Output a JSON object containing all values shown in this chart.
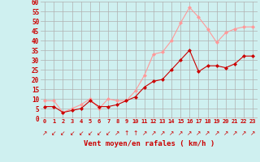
{
  "x": [
    0,
    1,
    2,
    3,
    4,
    5,
    6,
    7,
    8,
    9,
    10,
    11,
    12,
    13,
    14,
    15,
    16,
    17,
    18,
    19,
    20,
    21,
    22,
    23
  ],
  "vent_moyen": [
    6,
    6,
    3,
    4,
    5,
    9,
    6,
    6,
    7,
    9,
    11,
    16,
    19,
    20,
    25,
    30,
    35,
    24,
    27,
    27,
    26,
    28,
    32,
    32
  ],
  "en_rafales": [
    9,
    9,
    3,
    5,
    7,
    10,
    5,
    10,
    9,
    9,
    14,
    22,
    33,
    34,
    40,
    49,
    57,
    52,
    46,
    39,
    44,
    46,
    47,
    47
  ],
  "bg_color": "#cff0f0",
  "grid_color": "#b0b0b0",
  "line_color_moyen": "#cc0000",
  "line_color_rafales": "#ff9999",
  "xlabel": "Vent moyen/en rafales ( km/h )",
  "xlabel_color": "#cc0000",
  "tick_color": "#cc0000",
  "ylim": [
    0,
    60
  ],
  "yticks": [
    0,
    5,
    10,
    15,
    20,
    25,
    30,
    35,
    40,
    45,
    50,
    55,
    60
  ],
  "marker": "D",
  "marker_size": 2.0,
  "arrow_chars": [
    "↗",
    "↙",
    "↙",
    "↙",
    "↙",
    "↙",
    "↙",
    "↙",
    "↗",
    "↑",
    "↑",
    "↗",
    "↗",
    "↗",
    "↗",
    "↗",
    "↗",
    "↗",
    "↗",
    "↗",
    "↗",
    "↗",
    "↗",
    "↗"
  ]
}
